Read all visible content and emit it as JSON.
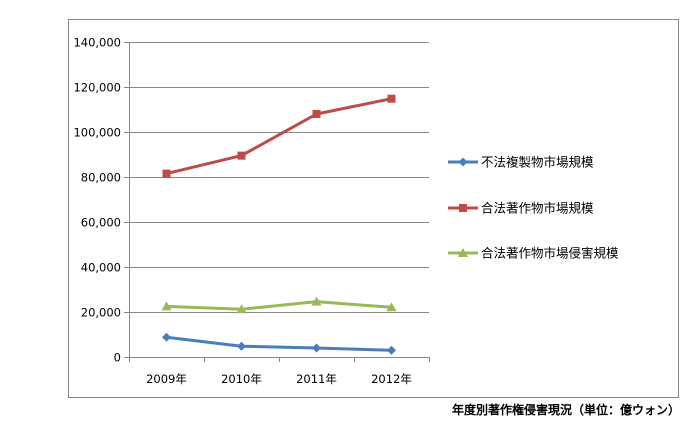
{
  "chart_data": {
    "type": "line",
    "categories": [
      "2009年",
      "2010年",
      "2011年",
      "2012年"
    ],
    "ylim": [
      0,
      140000
    ],
    "yticks": [
      "0",
      "20,000",
      "40,000",
      "60,000",
      "80,000",
      "100,000",
      "120,000",
      "140,000"
    ],
    "grid": "horizontal",
    "legend_position": "right",
    "series": [
      {
        "name": "不法複製物市場規模",
        "color": "#4a7ebb",
        "marker": "diamond",
        "values": [
          8800,
          4800,
          4000,
          3000
        ]
      },
      {
        "name": "合法著作物市場規模",
        "color": "#be4b48",
        "marker": "square",
        "values": [
          81500,
          89500,
          108000,
          114800
        ]
      },
      {
        "name": "合法著作物市場侵害規模",
        "color": "#98b954",
        "marker": "triangle",
        "values": [
          22500,
          21200,
          24600,
          22100
        ]
      }
    ]
  },
  "caption": "年度別著作権侵害現況（単位：億ウォン）"
}
